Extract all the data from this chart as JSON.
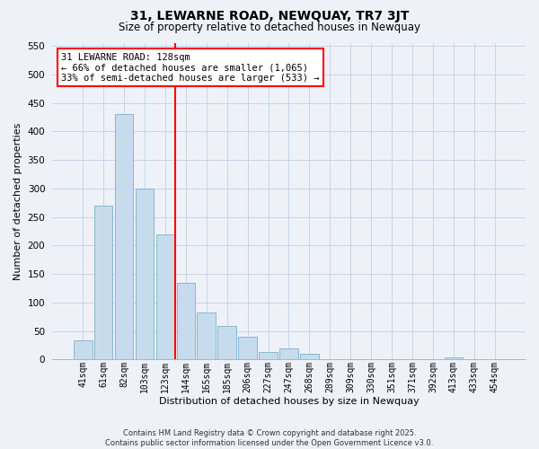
{
  "title": "31, LEWARNE ROAD, NEWQUAY, TR7 3JT",
  "subtitle": "Size of property relative to detached houses in Newquay",
  "xlabel": "Distribution of detached houses by size in Newquay",
  "ylabel": "Number of detached properties",
  "bar_color": "#c6dcec",
  "bar_edge_color": "#7ab0ce",
  "annotation_line_color": "red",
  "annotation_line_label": "31 LEWARNE ROAD: 128sqm",
  "annotation_line2": "← 66% of detached houses are smaller (1,065)",
  "annotation_line3": "33% of semi-detached houses are larger (533) →",
  "categories": [
    "41sqm",
    "61sqm",
    "82sqm",
    "103sqm",
    "123sqm",
    "144sqm",
    "165sqm",
    "185sqm",
    "206sqm",
    "227sqm",
    "247sqm",
    "268sqm",
    "289sqm",
    "309sqm",
    "330sqm",
    "351sqm",
    "371sqm",
    "392sqm",
    "413sqm",
    "433sqm",
    "454sqm"
  ],
  "values": [
    33,
    270,
    430,
    300,
    220,
    135,
    82,
    59,
    40,
    13,
    19,
    10,
    0,
    0,
    0,
    0,
    0,
    0,
    4,
    0,
    0
  ],
  "ylim": [
    0,
    555
  ],
  "yticks": [
    0,
    50,
    100,
    150,
    200,
    250,
    300,
    350,
    400,
    450,
    500,
    550
  ],
  "background_color": "#eef2f8",
  "grid_color": "#c5d5e8",
  "footer_line1": "Contains HM Land Registry data © Crown copyright and database right 2025.",
  "footer_line2": "Contains public sector information licensed under the Open Government Licence v3.0."
}
